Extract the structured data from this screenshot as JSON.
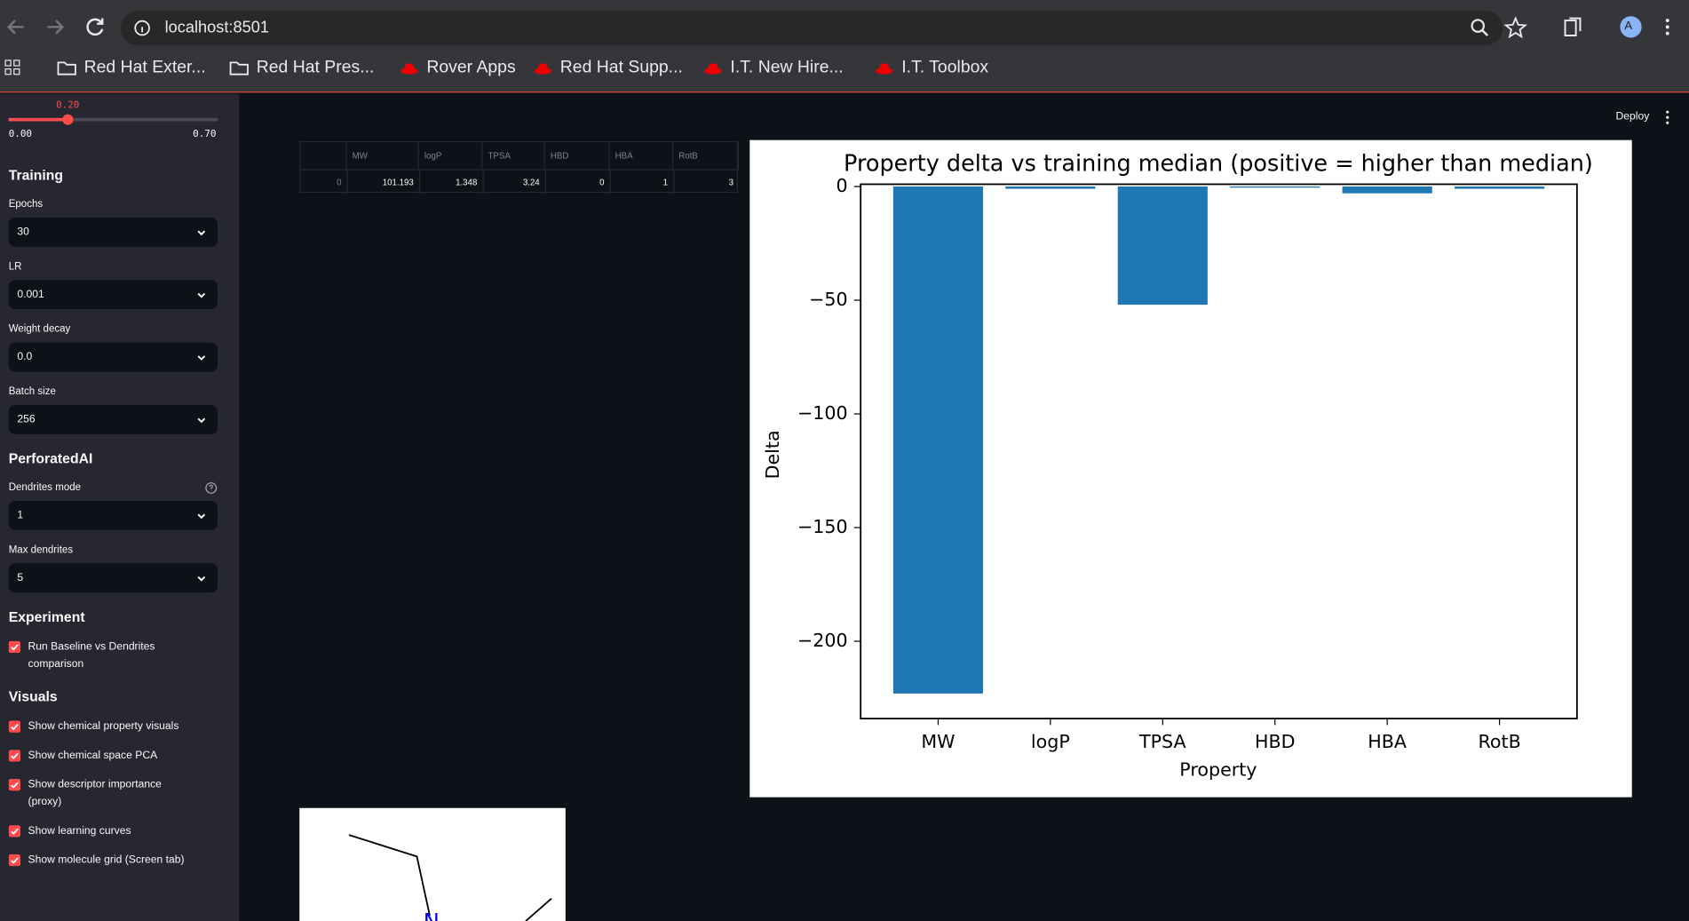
{
  "browser": {
    "url": "localhost:8501",
    "profile_initial": "A",
    "bookmarks": [
      {
        "title": "Red Hat Exter...",
        "icon": "folder"
      },
      {
        "title": "Red Hat Pres...",
        "icon": "folder"
      },
      {
        "title": "Rover Apps",
        "icon": "redhat"
      },
      {
        "title": "Red Hat Supp...",
        "icon": "redhat"
      },
      {
        "title": "I.T. New Hire...",
        "icon": "redhat"
      },
      {
        "title": "I.T. Toolbox",
        "icon": "redhat"
      }
    ]
  },
  "header": {
    "deploy": "Deploy"
  },
  "sidebar": {
    "slider": {
      "value": "0.20",
      "min": "0.00",
      "max": "0.70"
    },
    "sections": [
      {
        "title": "Training",
        "widgets": [
          {
            "label": "Epochs",
            "value": "30"
          },
          {
            "label": "LR",
            "value": "0.001"
          },
          {
            "label": "Weight decay",
            "value": "0.0"
          },
          {
            "label": "Batch size",
            "value": "256"
          }
        ]
      },
      {
        "title": "PerforatedAI",
        "widgets": [
          {
            "label": "Dendrites mode",
            "value": "1",
            "help": true
          },
          {
            "label": "Max dendrites",
            "value": "5"
          }
        ]
      },
      {
        "title": "Experiment",
        "checkboxes": [
          "Run Baseline vs Dendrites comparison"
        ]
      },
      {
        "title": "Visuals",
        "checkboxes": [
          "Show chemical property visuals",
          "Show chemical space PCA",
          "Show descriptor importance (proxy)",
          "Show learning curves",
          "Show molecule grid (Screen tab)"
        ]
      }
    ]
  },
  "table": {
    "columns": [
      "MW",
      "logP",
      "TPSA",
      "HBD",
      "HBA",
      "RotB"
    ],
    "rows": [
      {
        "index": "0",
        "cells": [
          "101.193",
          "1.348",
          "3.24",
          "0",
          "1",
          "3"
        ]
      }
    ]
  },
  "chart_data": {
    "type": "bar",
    "title": "Property delta vs training median (positive = higher than median)",
    "x_label": "Property",
    "y_label": "Delta",
    "categories": [
      "MW",
      "logP",
      "TPSA",
      "HBD",
      "HBA",
      "RotB"
    ],
    "values": [
      -223,
      -1,
      -52,
      -0.5,
      -3,
      -1
    ],
    "color": "#1f77b4",
    "ylim": [
      -234,
      1
    ],
    "yticks": [
      0,
      {
        "value": -50,
        "label": "−50"
      },
      {
        "value": -100,
        "label": "−100"
      },
      {
        "value": -150,
        "label": "−150"
      },
      {
        "value": -200,
        "label": "−200"
      }
    ],
    "grid": false
  },
  "molecule": {
    "atoms": [
      "N"
    ]
  }
}
